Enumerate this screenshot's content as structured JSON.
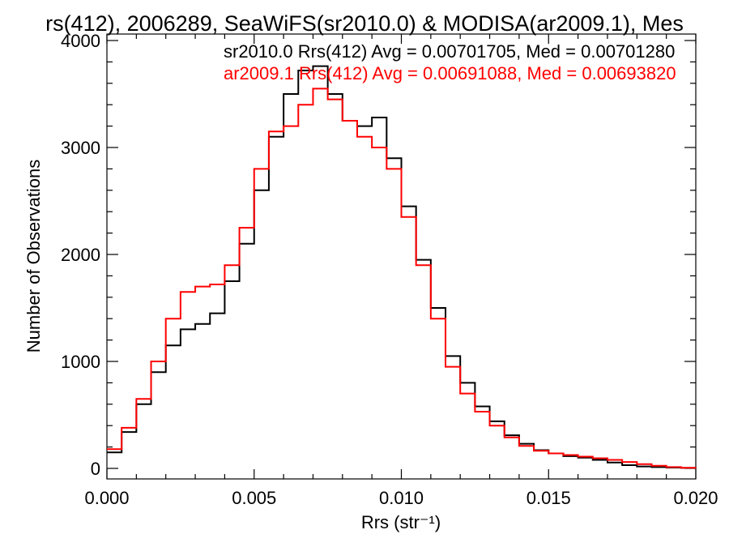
{
  "chart_data": {
    "type": "line",
    "title": "rs(412), 2006289, SeaWiFS(sr2010.0) & MODISA(ar2009.1), Mes",
    "xlabel": "Rrs (str⁻¹)",
    "ylabel": "Number of Observations",
    "xlim": [
      0.0,
      0.02
    ],
    "ylim": [
      0,
      4000
    ],
    "x_ticks": [
      "0.000",
      "0.005",
      "0.010",
      "0.015",
      "0.020"
    ],
    "y_ticks": [
      "0",
      "1000",
      "2000",
      "3000",
      "4000"
    ],
    "grid": false,
    "legend_placement": "top-right",
    "step": "histogram",
    "series": [
      {
        "name": "sr2010.0 Rrs(412) Avg = 0.00701705, Med = 0.00701280",
        "color": "#000000",
        "x": [
          0.0,
          0.0005,
          0.001,
          0.0015,
          0.002,
          0.0025,
          0.003,
          0.0035,
          0.004,
          0.0045,
          0.005,
          0.0055,
          0.006,
          0.0065,
          0.007,
          0.0075,
          0.008,
          0.0085,
          0.009,
          0.0095,
          0.01,
          0.0105,
          0.011,
          0.0115,
          0.012,
          0.0125,
          0.013,
          0.0135,
          0.014,
          0.0145,
          0.015,
          0.0155,
          0.016,
          0.0165,
          0.017,
          0.0175,
          0.018,
          0.0185,
          0.019,
          0.0195,
          0.02
        ],
        "values": [
          150,
          340,
          600,
          900,
          1150,
          1300,
          1350,
          1450,
          1750,
          2100,
          2600,
          3100,
          3500,
          3720,
          3760,
          3500,
          3250,
          3200,
          3280,
          2900,
          2450,
          1950,
          1500,
          1050,
          800,
          580,
          440,
          310,
          230,
          170,
          140,
          115,
          100,
          80,
          55,
          30,
          18,
          12,
          8,
          5,
          3
        ]
      },
      {
        "name": "ar2009.1 Rrs(412) Avg = 0.00691088, Med = 0.00693820",
        "color": "#ff0000",
        "x": [
          0.0,
          0.0005,
          0.001,
          0.0015,
          0.002,
          0.0025,
          0.003,
          0.0035,
          0.004,
          0.0045,
          0.005,
          0.0055,
          0.006,
          0.0065,
          0.007,
          0.0075,
          0.008,
          0.0085,
          0.009,
          0.0095,
          0.01,
          0.0105,
          0.011,
          0.0115,
          0.012,
          0.0125,
          0.013,
          0.0135,
          0.014,
          0.0145,
          0.015,
          0.0155,
          0.016,
          0.0165,
          0.017,
          0.0175,
          0.018,
          0.0185,
          0.019,
          0.0195,
          0.02
        ],
        "values": [
          180,
          380,
          650,
          1000,
          1400,
          1650,
          1700,
          1720,
          1900,
          2250,
          2800,
          3150,
          3200,
          3400,
          3550,
          3450,
          3250,
          3100,
          3000,
          2800,
          2350,
          1900,
          1400,
          950,
          700,
          530,
          400,
          290,
          210,
          165,
          140,
          125,
          110,
          95,
          80,
          60,
          40,
          25,
          12,
          6,
          3
        ]
      }
    ]
  }
}
